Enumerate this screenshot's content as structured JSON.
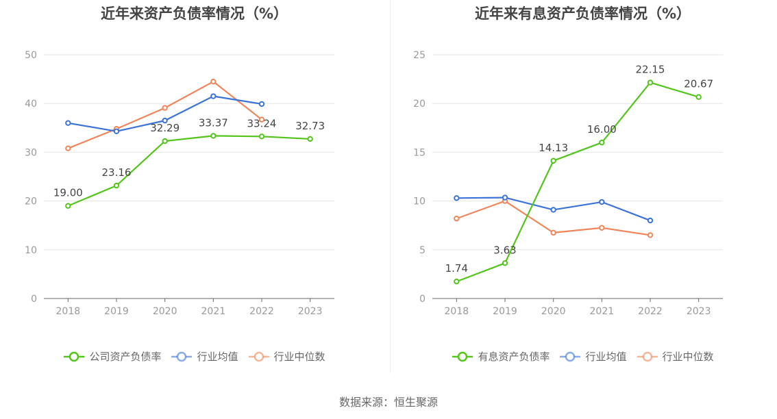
{
  "source_text": "数据来源：恒生聚源",
  "chart_data": [
    {
      "type": "line",
      "title": "近年来资产负债率情况（%）",
      "xlabel": "",
      "ylabel": "",
      "categories": [
        "2018",
        "2019",
        "2020",
        "2021",
        "2022",
        "2023"
      ],
      "ylim": [
        0,
        50
      ],
      "yticks": [
        0,
        10,
        20,
        30,
        40,
        50
      ],
      "grid": true,
      "legend_position": "bottom",
      "series": [
        {
          "name": "公司资产负债率",
          "color": "#52c41a",
          "values": [
            19.0,
            23.16,
            32.29,
            33.37,
            33.24,
            32.73
          ],
          "show_labels": true
        },
        {
          "name": "行业均值",
          "color": "#3b73d9",
          "values": [
            36.0,
            34.3,
            36.5,
            41.5,
            39.9,
            null
          ],
          "show_labels": false
        },
        {
          "name": "行业中位数",
          "color": "#f0855a",
          "values": [
            30.8,
            34.8,
            39.1,
            44.5,
            36.7,
            null
          ],
          "show_labels": false
        }
      ]
    },
    {
      "type": "line",
      "title": "近年来有息资产负债率情况（%）",
      "xlabel": "",
      "ylabel": "",
      "categories": [
        "2018",
        "2019",
        "2020",
        "2021",
        "2022",
        "2023"
      ],
      "ylim": [
        0,
        25
      ],
      "yticks": [
        0,
        5,
        10,
        15,
        20,
        25
      ],
      "grid": true,
      "legend_position": "bottom",
      "series": [
        {
          "name": "有息资产负债率",
          "color": "#52c41a",
          "values": [
            1.74,
            3.63,
            14.13,
            16.0,
            22.15,
            20.67
          ],
          "show_labels": true
        },
        {
          "name": "行业均值",
          "color": "#3b73d9",
          "values": [
            10.3,
            10.35,
            9.1,
            9.9,
            8.0,
            null
          ],
          "show_labels": false
        },
        {
          "name": "行业中位数",
          "color": "#f0855a",
          "values": [
            8.2,
            10.0,
            6.75,
            7.25,
            6.5,
            null
          ],
          "show_labels": false
        }
      ]
    }
  ]
}
